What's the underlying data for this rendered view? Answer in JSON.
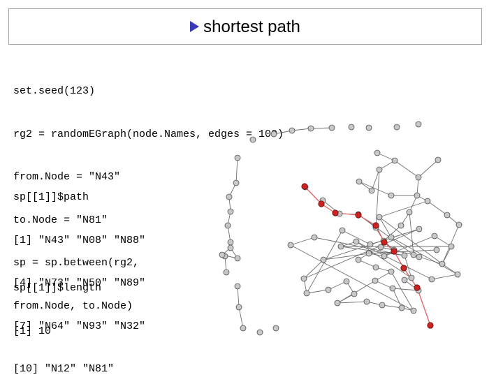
{
  "slide": {
    "title": "shortest path"
  },
  "code_block_1": [
    "set.seed(123)",
    "rg2 = randomEGraph(node.Names, edges = 100)",
    "from.Node = \"N43\"",
    "to.Node = \"N81\"",
    "sp = sp.between(rg2,",
    "from.Node, to.Node)"
  ],
  "code_block_2": [
    "sp[[1]]$path",
    "[1] \"N43\" \"N08\" \"N88\"",
    "[4] \"N73\" \"N50\" \"N89\"",
    "[7] \"N64\" \"N93\" \"N32\"",
    "[10] \"N12\" \"N81\""
  ],
  "code_block_3": [
    "sp[[1]]$length",
    "[1] 10"
  ],
  "graph": {
    "colors": {
      "node_fill": "#c8c8c8",
      "node_stroke": "#505050",
      "edge": "#707070",
      "path_node": "#cc2222",
      "path_edge": "#e06060"
    }
  }
}
